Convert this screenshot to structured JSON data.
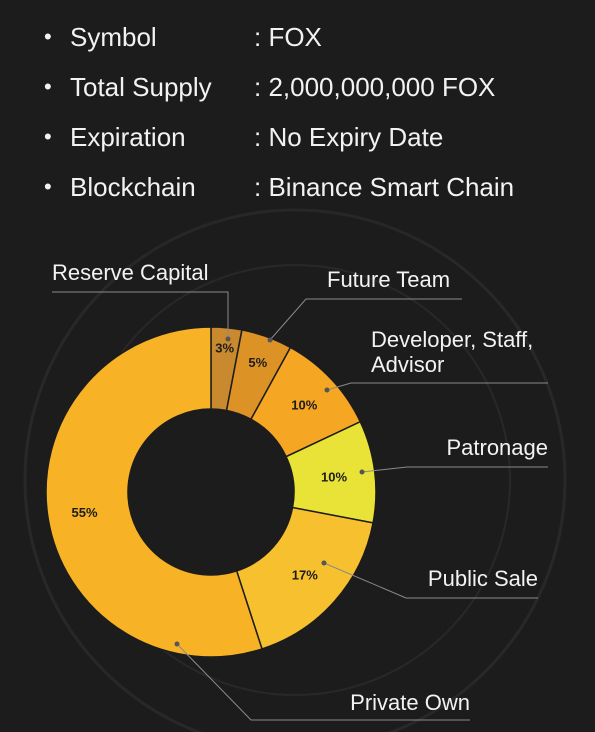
{
  "token_info": [
    {
      "label": "Symbol",
      "value": ": FOX"
    },
    {
      "label": "Total Supply",
      "value": ": 2,000,000,000 FOX"
    },
    {
      "label": "Expiration",
      "value": ": No Expiry Date"
    },
    {
      "label": "Blockchain",
      "value": ": Binance Smart Chain"
    }
  ],
  "chart_data": {
    "type": "pie",
    "donut": true,
    "slices": [
      {
        "name": "Reserve Capital",
        "value": 3,
        "label": "3%",
        "color": "#c8892f"
      },
      {
        "name": "Future Team",
        "value": 5,
        "label": "5%",
        "color": "#dd9225"
      },
      {
        "name": "Developer, Staff, Advisor",
        "value": 10,
        "label": "10%",
        "color": "#f5a623"
      },
      {
        "name": "Patronage",
        "value": 10,
        "label": "10%",
        "color": "#e8e336"
      },
      {
        "name": "Public Sale",
        "value": 17,
        "label": "17%",
        "color": "#f6c02e"
      },
      {
        "name": "Private Own",
        "value": 55,
        "label": "55%",
        "color": "#f7b225"
      }
    ]
  }
}
